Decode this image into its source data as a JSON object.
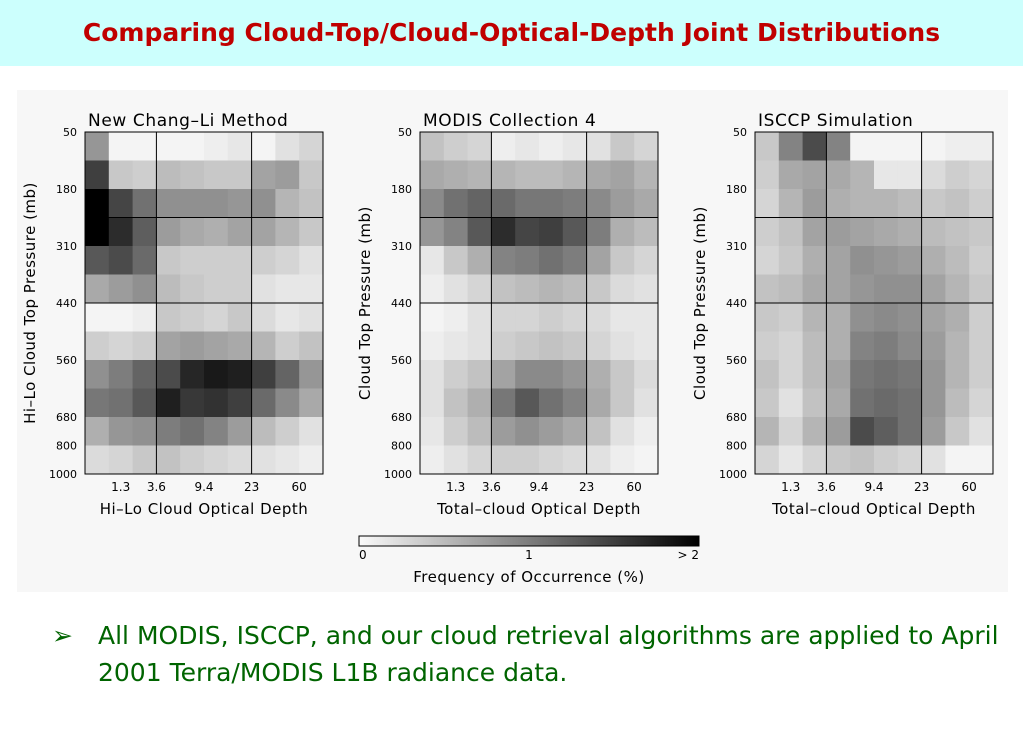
{
  "slide": {
    "title": "Comparing Cloud-Top/Cloud-Optical-Depth Joint Distributions",
    "bullet_marker": "➢",
    "bullet_text": "All MODIS, ISCCP, and our cloud retrieval algorithms are applied to April 2001 Terra/MODIS L1B radiance data.",
    "colors": {
      "title": "#c00000",
      "title_background": "#ccfffd",
      "bullet": "#006400"
    }
  },
  "chart_data": [
    {
      "type": "heatmap",
      "title": "New Chang–Li Method",
      "xlabel": "Hi–Lo Cloud Optical Depth",
      "ylabel": "Hi–Lo Cloud Top Pressure (mb)",
      "x_ticks": [
        "1.3",
        "3.6",
        "9.4",
        "23",
        "60"
      ],
      "y_ticks": [
        "50",
        "180",
        "310",
        "440",
        "560",
        "680",
        "800",
        "1000"
      ],
      "values": [
        [
          0.8,
          0.05,
          0.05,
          0.05,
          0.05,
          0.1,
          0.15,
          0.05,
          0.2,
          0.3
        ],
        [
          1.5,
          0.4,
          0.35,
          0.5,
          0.45,
          0.4,
          0.4,
          0.7,
          0.75,
          0.4
        ],
        [
          2.0,
          1.45,
          1.1,
          0.85,
          0.85,
          0.85,
          0.8,
          0.85,
          0.55,
          0.45
        ],
        [
          2.0,
          1.65,
          1.25,
          0.75,
          0.65,
          0.6,
          0.7,
          0.7,
          0.55,
          0.4
        ],
        [
          1.3,
          1.4,
          1.15,
          0.4,
          0.35,
          0.35,
          0.35,
          0.35,
          0.3,
          0.2
        ],
        [
          0.65,
          0.75,
          0.85,
          0.5,
          0.4,
          0.35,
          0.35,
          0.2,
          0.15,
          0.15
        ],
        [
          0.05,
          0.05,
          0.1,
          0.4,
          0.35,
          0.3,
          0.4,
          0.25,
          0.15,
          0.2
        ],
        [
          0.35,
          0.3,
          0.35,
          0.7,
          0.75,
          0.7,
          0.65,
          0.55,
          0.35,
          0.45
        ],
        [
          0.85,
          1.0,
          1.2,
          1.4,
          1.7,
          1.8,
          1.75,
          1.5,
          1.2,
          0.8
        ],
        [
          1.05,
          1.1,
          1.3,
          1.75,
          1.55,
          1.6,
          1.5,
          1.15,
          0.9,
          0.65
        ],
        [
          0.6,
          0.8,
          0.85,
          1.0,
          1.1,
          0.95,
          0.75,
          0.5,
          0.35,
          0.2
        ],
        [
          0.25,
          0.3,
          0.4,
          0.45,
          0.35,
          0.3,
          0.25,
          0.2,
          0.15,
          0.1
        ]
      ]
    },
    {
      "type": "heatmap",
      "title": "MODIS Collection 4",
      "xlabel": "Total–cloud Optical Depth",
      "ylabel": "Cloud Top Pressure (mb)",
      "x_ticks": [
        "1.3",
        "3.6",
        "9.4",
        "23",
        "60"
      ],
      "y_ticks": [
        "50",
        "180",
        "310",
        "440",
        "560",
        "680",
        "800",
        "1000"
      ],
      "values": [
        [
          0.45,
          0.35,
          0.3,
          0.1,
          0.15,
          0.1,
          0.15,
          0.2,
          0.4,
          0.3
        ],
        [
          0.65,
          0.6,
          0.55,
          0.55,
          0.5,
          0.5,
          0.55,
          0.65,
          0.7,
          0.55
        ],
        [
          0.9,
          1.1,
          1.2,
          1.15,
          1.05,
          1.05,
          1.0,
          0.9,
          0.75,
          0.65
        ],
        [
          0.8,
          0.95,
          1.3,
          1.65,
          1.45,
          1.5,
          1.3,
          1.0,
          0.6,
          0.5
        ],
        [
          0.15,
          0.4,
          0.6,
          0.95,
          1.0,
          1.1,
          1.0,
          0.7,
          0.4,
          0.3
        ],
        [
          0.1,
          0.2,
          0.3,
          0.45,
          0.5,
          0.55,
          0.5,
          0.4,
          0.25,
          0.2
        ],
        [
          0.05,
          0.1,
          0.2,
          0.3,
          0.3,
          0.35,
          0.3,
          0.25,
          0.15,
          0.15
        ],
        [
          0.1,
          0.15,
          0.2,
          0.35,
          0.4,
          0.45,
          0.4,
          0.3,
          0.2,
          0.15
        ],
        [
          0.2,
          0.35,
          0.45,
          0.7,
          0.9,
          0.9,
          0.8,
          0.6,
          0.4,
          0.25
        ],
        [
          0.2,
          0.45,
          0.6,
          1.05,
          1.3,
          1.1,
          0.95,
          0.65,
          0.4,
          0.2
        ],
        [
          0.15,
          0.35,
          0.5,
          0.75,
          0.85,
          0.75,
          0.65,
          0.45,
          0.2,
          0.1
        ],
        [
          0.1,
          0.2,
          0.3,
          0.35,
          0.35,
          0.3,
          0.25,
          0.2,
          0.1,
          0.05
        ]
      ]
    },
    {
      "type": "heatmap",
      "title": "ISCCP Simulation",
      "xlabel": "Total–cloud Optical Depth",
      "ylabel": "Cloud Top Pressure (mb)",
      "x_ticks": [
        "1.3",
        "3.6",
        "9.4",
        "23",
        "60"
      ],
      "y_ticks": [
        "50",
        "180",
        "310",
        "440",
        "560",
        "680",
        "800",
        "1000"
      ],
      "values": [
        [
          0.4,
          0.95,
          1.4,
          0.95,
          0.05,
          0.05,
          0.05,
          0.05,
          0.1,
          0.1
        ],
        [
          0.35,
          0.65,
          0.7,
          0.65,
          0.55,
          0.15,
          0.15,
          0.25,
          0.35,
          0.3
        ],
        [
          0.3,
          0.55,
          0.75,
          0.6,
          0.55,
          0.55,
          0.5,
          0.4,
          0.45,
          0.35
        ],
        [
          0.35,
          0.45,
          0.7,
          0.75,
          0.7,
          0.65,
          0.6,
          0.5,
          0.45,
          0.4
        ],
        [
          0.3,
          0.4,
          0.6,
          0.7,
          0.85,
          0.8,
          0.75,
          0.6,
          0.5,
          0.35
        ],
        [
          0.45,
          0.5,
          0.65,
          0.7,
          0.8,
          0.85,
          0.85,
          0.7,
          0.55,
          0.4
        ],
        [
          0.4,
          0.35,
          0.55,
          0.6,
          0.85,
          0.9,
          0.85,
          0.7,
          0.6,
          0.35
        ],
        [
          0.35,
          0.3,
          0.5,
          0.6,
          0.95,
          1.0,
          0.9,
          0.75,
          0.55,
          0.35
        ],
        [
          0.45,
          0.3,
          0.5,
          0.7,
          1.05,
          1.1,
          1.05,
          0.8,
          0.55,
          0.35
        ],
        [
          0.4,
          0.2,
          0.45,
          0.65,
          1.1,
          1.15,
          1.1,
          0.8,
          0.5,
          0.3
        ],
        [
          0.55,
          0.3,
          0.55,
          0.75,
          1.4,
          1.25,
          1.1,
          0.75,
          0.4,
          0.2
        ],
        [
          0.3,
          0.15,
          0.3,
          0.4,
          0.45,
          0.35,
          0.3,
          0.2,
          0.05,
          0.05
        ]
      ]
    }
  ],
  "colorbar": {
    "label": "Frequency of Occurrence (%)",
    "tick_labels": [
      "0",
      "1",
      "> 2"
    ],
    "range": [
      0,
      2
    ],
    "tick_values": [
      0,
      1,
      2
    ]
  }
}
